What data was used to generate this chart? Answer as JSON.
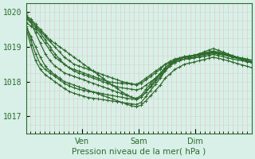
{
  "title": "",
  "xlabel": "Pression niveau de la mer( hPa )",
  "ylabel": "",
  "bg_color": "#d8f0e8",
  "line_color": "#2d6b2d",
  "grid_color_v": "#e8c0c0",
  "grid_color_h": "#c0ddd0",
  "ylim": [
    1016.5,
    1020.25
  ],
  "xlim": [
    0,
    96
  ],
  "xtick_positions": [
    24,
    48,
    72
  ],
  "xtick_labels": [
    "Ven",
    "Sam",
    "Dim"
  ],
  "ytick_positions": [
    1017,
    1018,
    1019,
    1020
  ],
  "ytick_labels": [
    "1017",
    "1018",
    "1019",
    "1020"
  ],
  "series": [
    [
      1019.7,
      1019.6,
      1019.5,
      1019.3,
      1019.1,
      1018.9,
      1018.7,
      1018.6,
      1018.5,
      1018.4,
      1018.35,
      1018.3,
      1018.25,
      1018.2,
      1018.15,
      1018.1,
      1018.05,
      1018.0,
      1017.98,
      1017.96,
      1017.95,
      1017.94,
      1017.93,
      1017.92,
      1018.0,
      1018.1,
      1018.2,
      1018.3,
      1018.4,
      1018.5,
      1018.55,
      1018.6,
      1018.65,
      1018.7,
      1018.7,
      1018.75,
      1018.8,
      1018.85,
      1018.9,
      1018.95,
      1018.9,
      1018.85,
      1018.8,
      1018.75,
      1018.7,
      1018.65,
      1018.6,
      1018.55
    ],
    [
      1019.8,
      1019.7,
      1019.55,
      1019.4,
      1019.2,
      1019.0,
      1018.8,
      1018.65,
      1018.5,
      1018.4,
      1018.3,
      1018.25,
      1018.2,
      1018.15,
      1018.1,
      1018.05,
      1018.0,
      1017.95,
      1017.9,
      1017.85,
      1017.82,
      1017.8,
      1017.78,
      1017.76,
      1017.8,
      1017.9,
      1018.0,
      1018.1,
      1018.2,
      1018.35,
      1018.45,
      1018.55,
      1018.6,
      1018.65,
      1018.65,
      1018.68,
      1018.7,
      1018.72,
      1018.75,
      1018.78,
      1018.75,
      1018.72,
      1018.68,
      1018.65,
      1018.62,
      1018.6,
      1018.57,
      1018.55
    ],
    [
      1019.85,
      1019.75,
      1019.6,
      1019.45,
      1019.3,
      1019.15,
      1019.0,
      1018.85,
      1018.7,
      1018.6,
      1018.5,
      1018.45,
      1018.4,
      1018.35,
      1018.3,
      1018.25,
      1018.2,
      1018.15,
      1018.1,
      1018.05,
      1018.0,
      1017.97,
      1017.94,
      1017.91,
      1017.95,
      1018.05,
      1018.15,
      1018.25,
      1018.35,
      1018.5,
      1018.58,
      1018.65,
      1018.68,
      1018.72,
      1018.72,
      1018.74,
      1018.76,
      1018.78,
      1018.8,
      1018.82,
      1018.8,
      1018.78,
      1018.75,
      1018.72,
      1018.7,
      1018.68,
      1018.65,
      1018.62
    ],
    [
      1019.9,
      1019.8,
      1019.65,
      1019.5,
      1019.35,
      1019.2,
      1019.1,
      1019.0,
      1018.9,
      1018.8,
      1018.7,
      1018.6,
      1018.5,
      1018.4,
      1018.3,
      1018.2,
      1018.1,
      1018.0,
      1017.9,
      1017.8,
      1017.7,
      1017.62,
      1017.55,
      1017.5,
      1017.55,
      1017.7,
      1017.85,
      1018.0,
      1018.15,
      1018.35,
      1018.45,
      1018.55,
      1018.6,
      1018.65,
      1018.68,
      1018.7,
      1018.73,
      1018.76,
      1018.8,
      1018.83,
      1018.8,
      1018.77,
      1018.74,
      1018.7,
      1018.67,
      1018.64,
      1018.6,
      1018.57
    ],
    [
      1019.6,
      1019.3,
      1019.0,
      1018.7,
      1018.45,
      1018.3,
      1018.2,
      1018.1,
      1018.0,
      1017.95,
      1017.9,
      1017.85,
      1017.8,
      1017.75,
      1017.7,
      1017.65,
      1017.6,
      1017.55,
      1017.5,
      1017.45,
      1017.4,
      1017.35,
      1017.3,
      1017.28,
      1017.32,
      1017.45,
      1017.6,
      1017.75,
      1017.9,
      1018.1,
      1018.22,
      1018.35,
      1018.42,
      1018.5,
      1018.53,
      1018.56,
      1018.6,
      1018.63,
      1018.67,
      1018.7,
      1018.67,
      1018.64,
      1018.6,
      1018.56,
      1018.52,
      1018.48,
      1018.44,
      1018.4
    ],
    [
      1019.95,
      1019.7,
      1019.4,
      1019.1,
      1018.8,
      1018.6,
      1018.45,
      1018.35,
      1018.25,
      1018.2,
      1018.15,
      1018.1,
      1018.05,
      1018.0,
      1017.95,
      1017.9,
      1017.85,
      1017.8,
      1017.75,
      1017.7,
      1017.65,
      1017.6,
      1017.55,
      1017.52,
      1017.6,
      1017.78,
      1017.95,
      1018.1,
      1018.25,
      1018.4,
      1018.5,
      1018.6,
      1018.65,
      1018.7,
      1018.72,
      1018.75,
      1018.78,
      1018.8,
      1018.83,
      1018.85,
      1018.82,
      1018.78,
      1018.75,
      1018.7,
      1018.67,
      1018.63,
      1018.6,
      1018.56
    ],
    [
      1019.65,
      1019.2,
      1018.8,
      1018.5,
      1018.35,
      1018.25,
      1018.15,
      1018.05,
      1017.95,
      1017.88,
      1017.82,
      1017.78,
      1017.75,
      1017.72,
      1017.7,
      1017.68,
      1017.65,
      1017.62,
      1017.6,
      1017.57,
      1017.55,
      1017.52,
      1017.5,
      1017.48,
      1017.55,
      1017.7,
      1017.88,
      1018.05,
      1018.22,
      1018.4,
      1018.52,
      1018.62,
      1018.67,
      1018.72,
      1018.74,
      1018.76,
      1018.79,
      1018.82,
      1018.85,
      1018.88,
      1018.85,
      1018.82,
      1018.78,
      1018.74,
      1018.7,
      1018.66,
      1018.62,
      1018.58
    ],
    [
      1019.55,
      1019.05,
      1018.6,
      1018.35,
      1018.2,
      1018.1,
      1018.0,
      1017.9,
      1017.8,
      1017.72,
      1017.66,
      1017.62,
      1017.58,
      1017.54,
      1017.52,
      1017.5,
      1017.48,
      1017.46,
      1017.44,
      1017.42,
      1017.4,
      1017.38,
      1017.36,
      1017.34,
      1017.4,
      1017.57,
      1017.75,
      1017.93,
      1018.1,
      1018.3,
      1018.45,
      1018.58,
      1018.65,
      1018.7,
      1018.73,
      1018.75,
      1018.78,
      1018.8,
      1018.83,
      1018.85,
      1018.83,
      1018.8,
      1018.76,
      1018.72,
      1018.68,
      1018.64,
      1018.6,
      1018.56
    ]
  ],
  "n_points": 48,
  "marker": "+",
  "marker_size": 3.5,
  "linewidth": 0.9
}
